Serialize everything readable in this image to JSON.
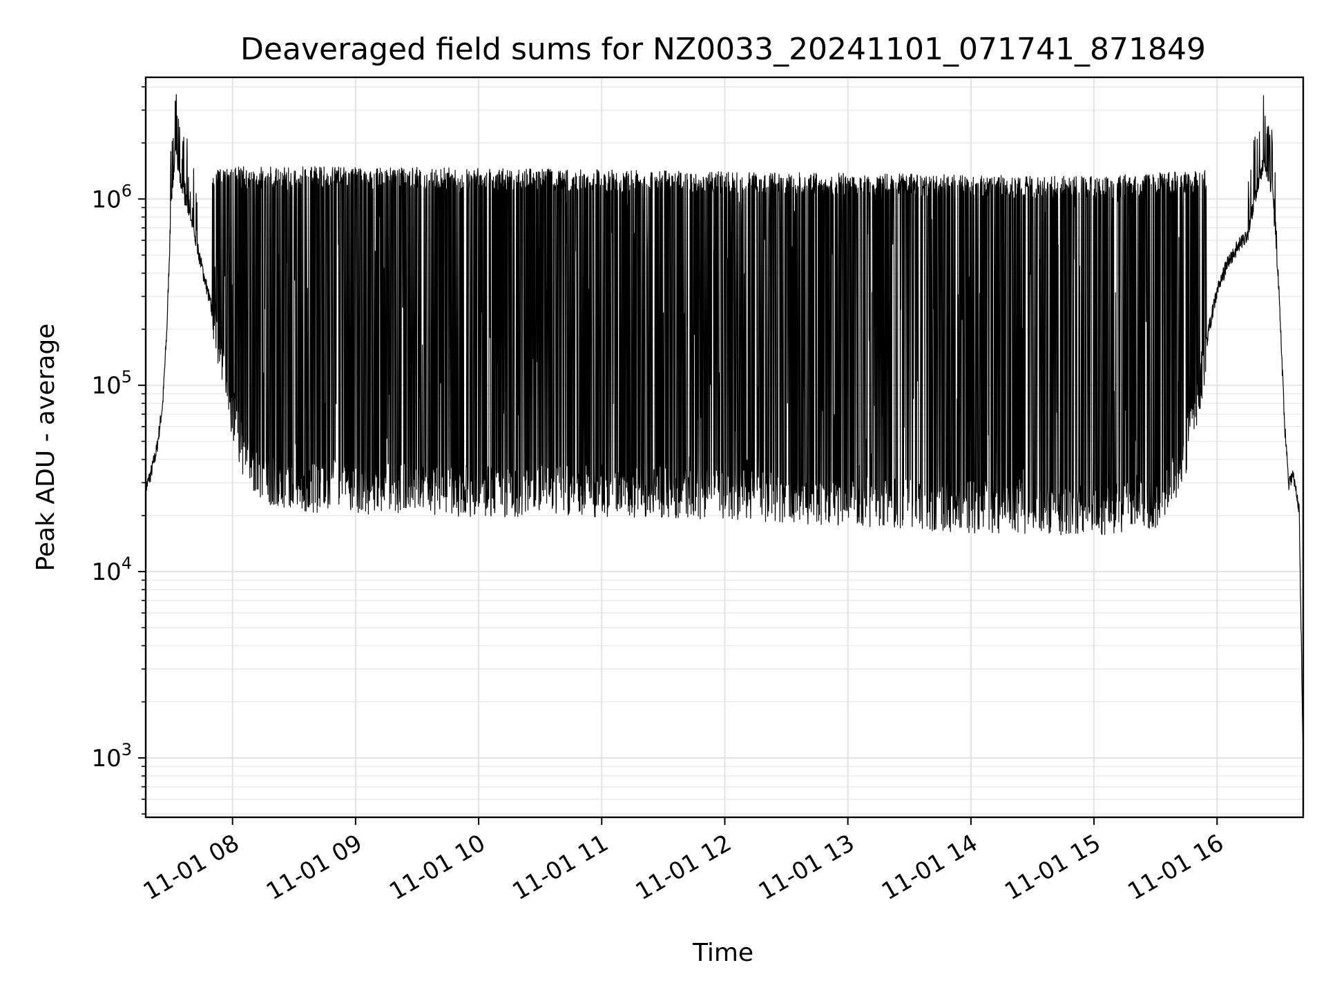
{
  "chart_data": {
    "type": "line",
    "title": "Deaveraged field sums for NZ0033_20241101_071741_871849",
    "xlabel": "Time",
    "ylabel": "Peak ADU - average",
    "y_scale": "log",
    "ylim": [
      480,
      4500000
    ],
    "xlim": [
      "2024-11-01 07:17:41",
      "2024-11-01 16:42:00"
    ],
    "x_ticks": [
      "2024-11-01 08:00",
      "2024-11-01 09:00",
      "2024-11-01 10:00",
      "2024-11-01 11:00",
      "2024-11-01 12:00",
      "2024-11-01 13:00",
      "2024-11-01 14:00",
      "2024-11-01 15:00",
      "2024-11-01 16:00"
    ],
    "x_tick_labels": [
      "11-01 08",
      "11-01 09",
      "11-01 10",
      "11-01 11",
      "11-01 12",
      "11-01 13",
      "11-01 14",
      "11-01 15",
      "11-01 16"
    ],
    "y_ticks": [
      1000,
      10000,
      100000,
      1000000
    ],
    "y_tick_labels": [
      {
        "base": "10",
        "exp": "3"
      },
      {
        "base": "10",
        "exp": "4"
      },
      {
        "base": "10",
        "exp": "5"
      },
      {
        "base": "10",
        "exp": "6"
      }
    ],
    "grid": true,
    "line_color": "#000000",
    "series": [
      {
        "values_description_points": [
          [
            "2024-11-01 07:17:41",
            28000
          ],
          [
            "2024-11-01 07:20",
            33000
          ],
          [
            "2024-11-01 07:23",
            45000
          ],
          [
            "2024-11-01 07:26",
            80000
          ],
          [
            "2024-11-01 07:28",
            200000
          ],
          [
            "2024-11-01 07:30",
            900000
          ],
          [
            "2024-11-01 07:32",
            1800000
          ],
          [
            "2024-11-01 07:35",
            1200000
          ],
          [
            "2024-11-01 07:38",
            900000
          ],
          [
            "2024-11-01 07:42",
            600000
          ],
          [
            "2024-11-01 07:47",
            350000
          ],
          [
            "2024-11-01 07:53",
            180000
          ],
          [
            "2024-11-01 07:58",
            90000
          ],
          [
            "2024-11-01 08:05",
            45000
          ],
          [
            "2024-11-01 08:15",
            33000
          ],
          [
            "2024-11-01 08:30",
            30000
          ],
          [
            "2024-11-01 09:00",
            29000
          ],
          [
            "2024-11-01 10:00",
            28000
          ],
          [
            "2024-11-01 11:00",
            28000
          ],
          [
            "2024-11-01 12:00",
            27000
          ],
          [
            "2024-11-01 13:00",
            25000
          ],
          [
            "2024-11-01 14:00",
            23000
          ],
          [
            "2024-11-01 15:00",
            22000
          ],
          [
            "2024-11-01 15:30",
            24000
          ],
          [
            "2024-11-01 15:42",
            35000
          ],
          [
            "2024-11-01 15:50",
            80000
          ],
          [
            "2024-11-01 15:56",
            200000
          ],
          [
            "2024-11-01 16:00",
            320000
          ],
          [
            "2024-11-01 16:05",
            450000
          ],
          [
            "2024-11-01 16:10",
            550000
          ],
          [
            "2024-11-01 16:15",
            650000
          ],
          [
            "2024-11-01 16:20",
            1200000
          ],
          [
            "2024-11-01 16:23",
            1600000
          ],
          [
            "2024-11-01 16:27",
            1100000
          ],
          [
            "2024-11-01 16:30",
            350000
          ],
          [
            "2024-11-01 16:33",
            60000
          ],
          [
            "2024-11-01 16:35",
            30000
          ],
          [
            "2024-11-01 16:37",
            33000
          ],
          [
            "2024-11-01 16:40",
            22000
          ],
          [
            "2024-11-01 16:42",
            1000
          ]
        ],
        "upper_envelope": [
          [
            "2024-11-01 07:50",
            1300000
          ],
          [
            "2024-11-01 09:00",
            1300000
          ],
          [
            "2024-11-01 11:00",
            1250000
          ],
          [
            "2024-11-01 13:00",
            1200000
          ],
          [
            "2024-11-01 15:00",
            1150000
          ],
          [
            "2024-11-01 15:55",
            1250000
          ]
        ]
      }
    ]
  }
}
